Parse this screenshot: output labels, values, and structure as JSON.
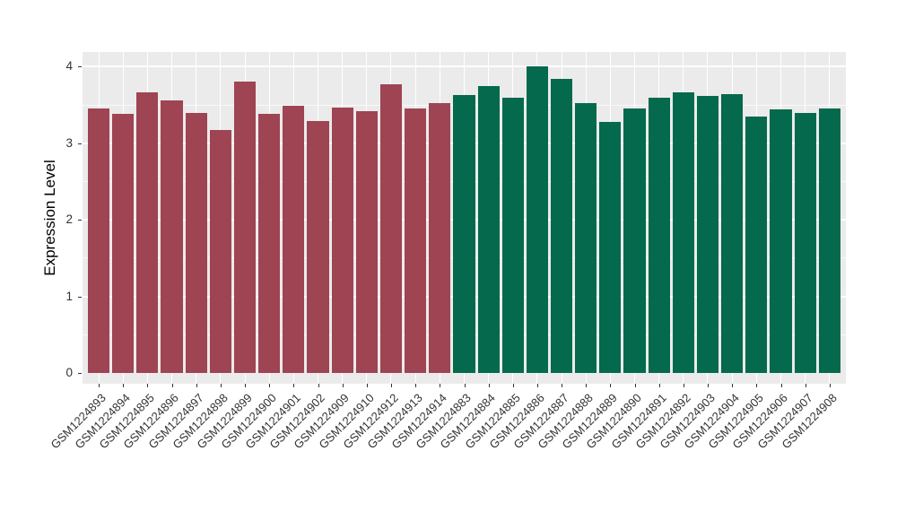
{
  "figure": {
    "background": "#FFFFFF",
    "panel_background": "#EBEBEB",
    "grid_color": "#FFFFFF",
    "axis_text_color": "#333333"
  },
  "chart_data": {
    "type": "bar",
    "title": "",
    "xlabel": "",
    "ylabel": "Expression Level",
    "ylim": [
      0,
      4.2
    ],
    "yticks_major": [
      0,
      1,
      2,
      3,
      4
    ],
    "yticks_minor": [
      0.5,
      1.5,
      2.5,
      3.5
    ],
    "grid": {
      "horizontal_major": true,
      "horizontal_minor": true,
      "vertical_major_at_category_centers": true
    },
    "legend_position": "none",
    "group_colors": {
      "group1": "#9E4453",
      "group2": "#05694D"
    },
    "bars": [
      {
        "label": "GSM1224893",
        "value": 3.46,
        "group": "group1"
      },
      {
        "label": "GSM1224894",
        "value": 3.38,
        "group": "group1"
      },
      {
        "label": "GSM1224895",
        "value": 3.67,
        "group": "group1"
      },
      {
        "label": "GSM1224896",
        "value": 3.56,
        "group": "group1"
      },
      {
        "label": "GSM1224897",
        "value": 3.4,
        "group": "group1"
      },
      {
        "label": "GSM1224898",
        "value": 3.17,
        "group": "group1"
      },
      {
        "label": "GSM1224899",
        "value": 3.81,
        "group": "group1"
      },
      {
        "label": "GSM1224900",
        "value": 3.39,
        "group": "group1"
      },
      {
        "label": "GSM1224901",
        "value": 3.49,
        "group": "group1"
      },
      {
        "label": "GSM1224902",
        "value": 3.29,
        "group": "group1"
      },
      {
        "label": "GSM1224909",
        "value": 3.47,
        "group": "group1"
      },
      {
        "label": "GSM1224910",
        "value": 3.42,
        "group": "group1"
      },
      {
        "label": "GSM1224912",
        "value": 3.77,
        "group": "group1"
      },
      {
        "label": "GSM1224913",
        "value": 3.45,
        "group": "group1"
      },
      {
        "label": "GSM1224914",
        "value": 3.52,
        "group": "group1"
      },
      {
        "label": "GSM1224883",
        "value": 3.63,
        "group": "group2"
      },
      {
        "label": "GSM1224884",
        "value": 3.75,
        "group": "group2"
      },
      {
        "label": "GSM1224885",
        "value": 3.59,
        "group": "group2"
      },
      {
        "label": "GSM1224886",
        "value": 4.0,
        "group": "group2"
      },
      {
        "label": "GSM1224887",
        "value": 3.84,
        "group": "group2"
      },
      {
        "label": "GSM1224888",
        "value": 3.52,
        "group": "group2"
      },
      {
        "label": "GSM1224889",
        "value": 3.28,
        "group": "group2"
      },
      {
        "label": "GSM1224890",
        "value": 3.46,
        "group": "group2"
      },
      {
        "label": "GSM1224891",
        "value": 3.59,
        "group": "group2"
      },
      {
        "label": "GSM1224892",
        "value": 3.66,
        "group": "group2"
      },
      {
        "label": "GSM1224903",
        "value": 3.62,
        "group": "group2"
      },
      {
        "label": "GSM1224904",
        "value": 3.64,
        "group": "group2"
      },
      {
        "label": "GSM1224905",
        "value": 3.35,
        "group": "group2"
      },
      {
        "label": "GSM1224906",
        "value": 3.44,
        "group": "group2"
      },
      {
        "label": "GSM1224907",
        "value": 3.4,
        "group": "group2"
      },
      {
        "label": "GSM1224908",
        "value": 3.46,
        "group": "group2"
      }
    ]
  }
}
